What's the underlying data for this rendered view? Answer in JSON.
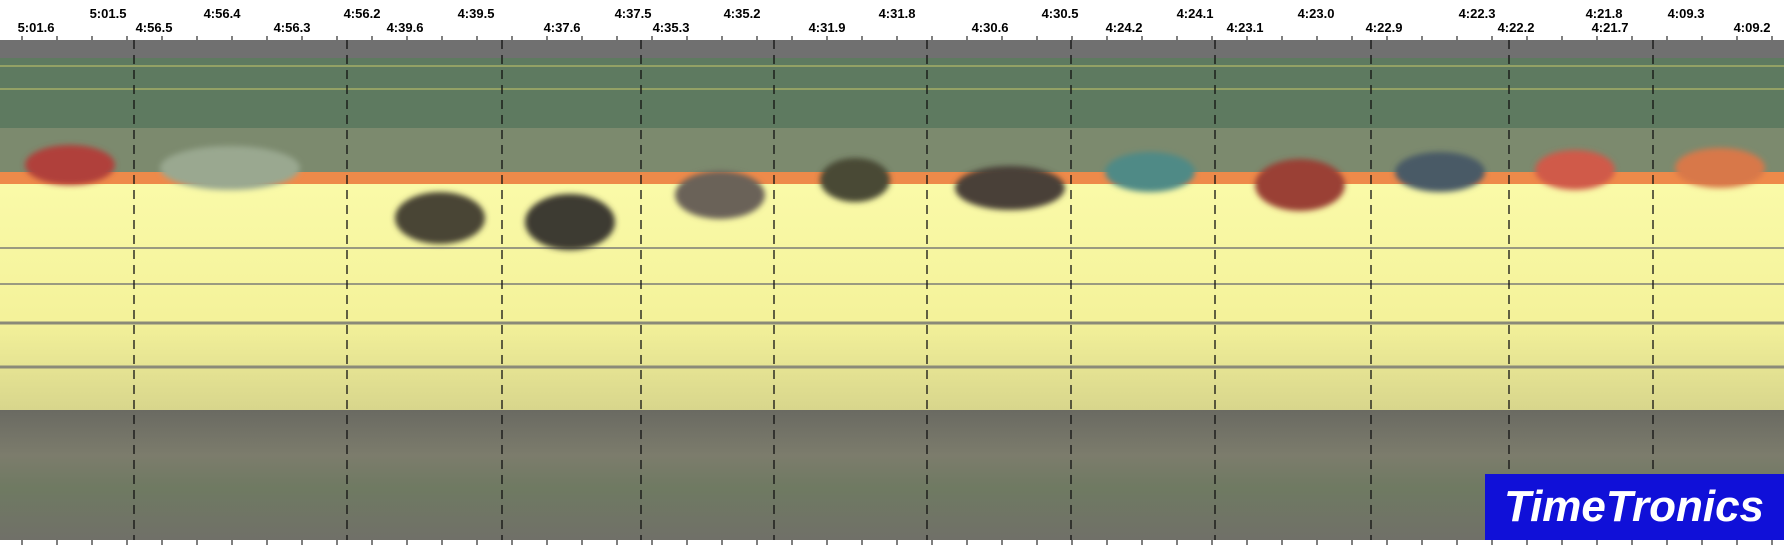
{
  "time_labels": {
    "top": [
      "5:01.5",
      "4:56.4",
      "4:56.2",
      "4:39.5",
      "4:37.5",
      "4:35.2",
      "4:31.8",
      "4:30.5",
      "4:24.1",
      "4:23.0",
      "4:22.3",
      "4:21.8",
      "4:09.3"
    ],
    "bottom": [
      "5:01.6",
      "4:56.5",
      "4:56.3",
      "4:39.6",
      "4:37.6",
      "4:35.3",
      "4:31.9",
      "4:30.6",
      "4:24.2",
      "4:23.1",
      "4:22.9",
      "4:22.2",
      "4:21.7",
      "4:09.2"
    ]
  },
  "logo": "TimeTronics"
}
